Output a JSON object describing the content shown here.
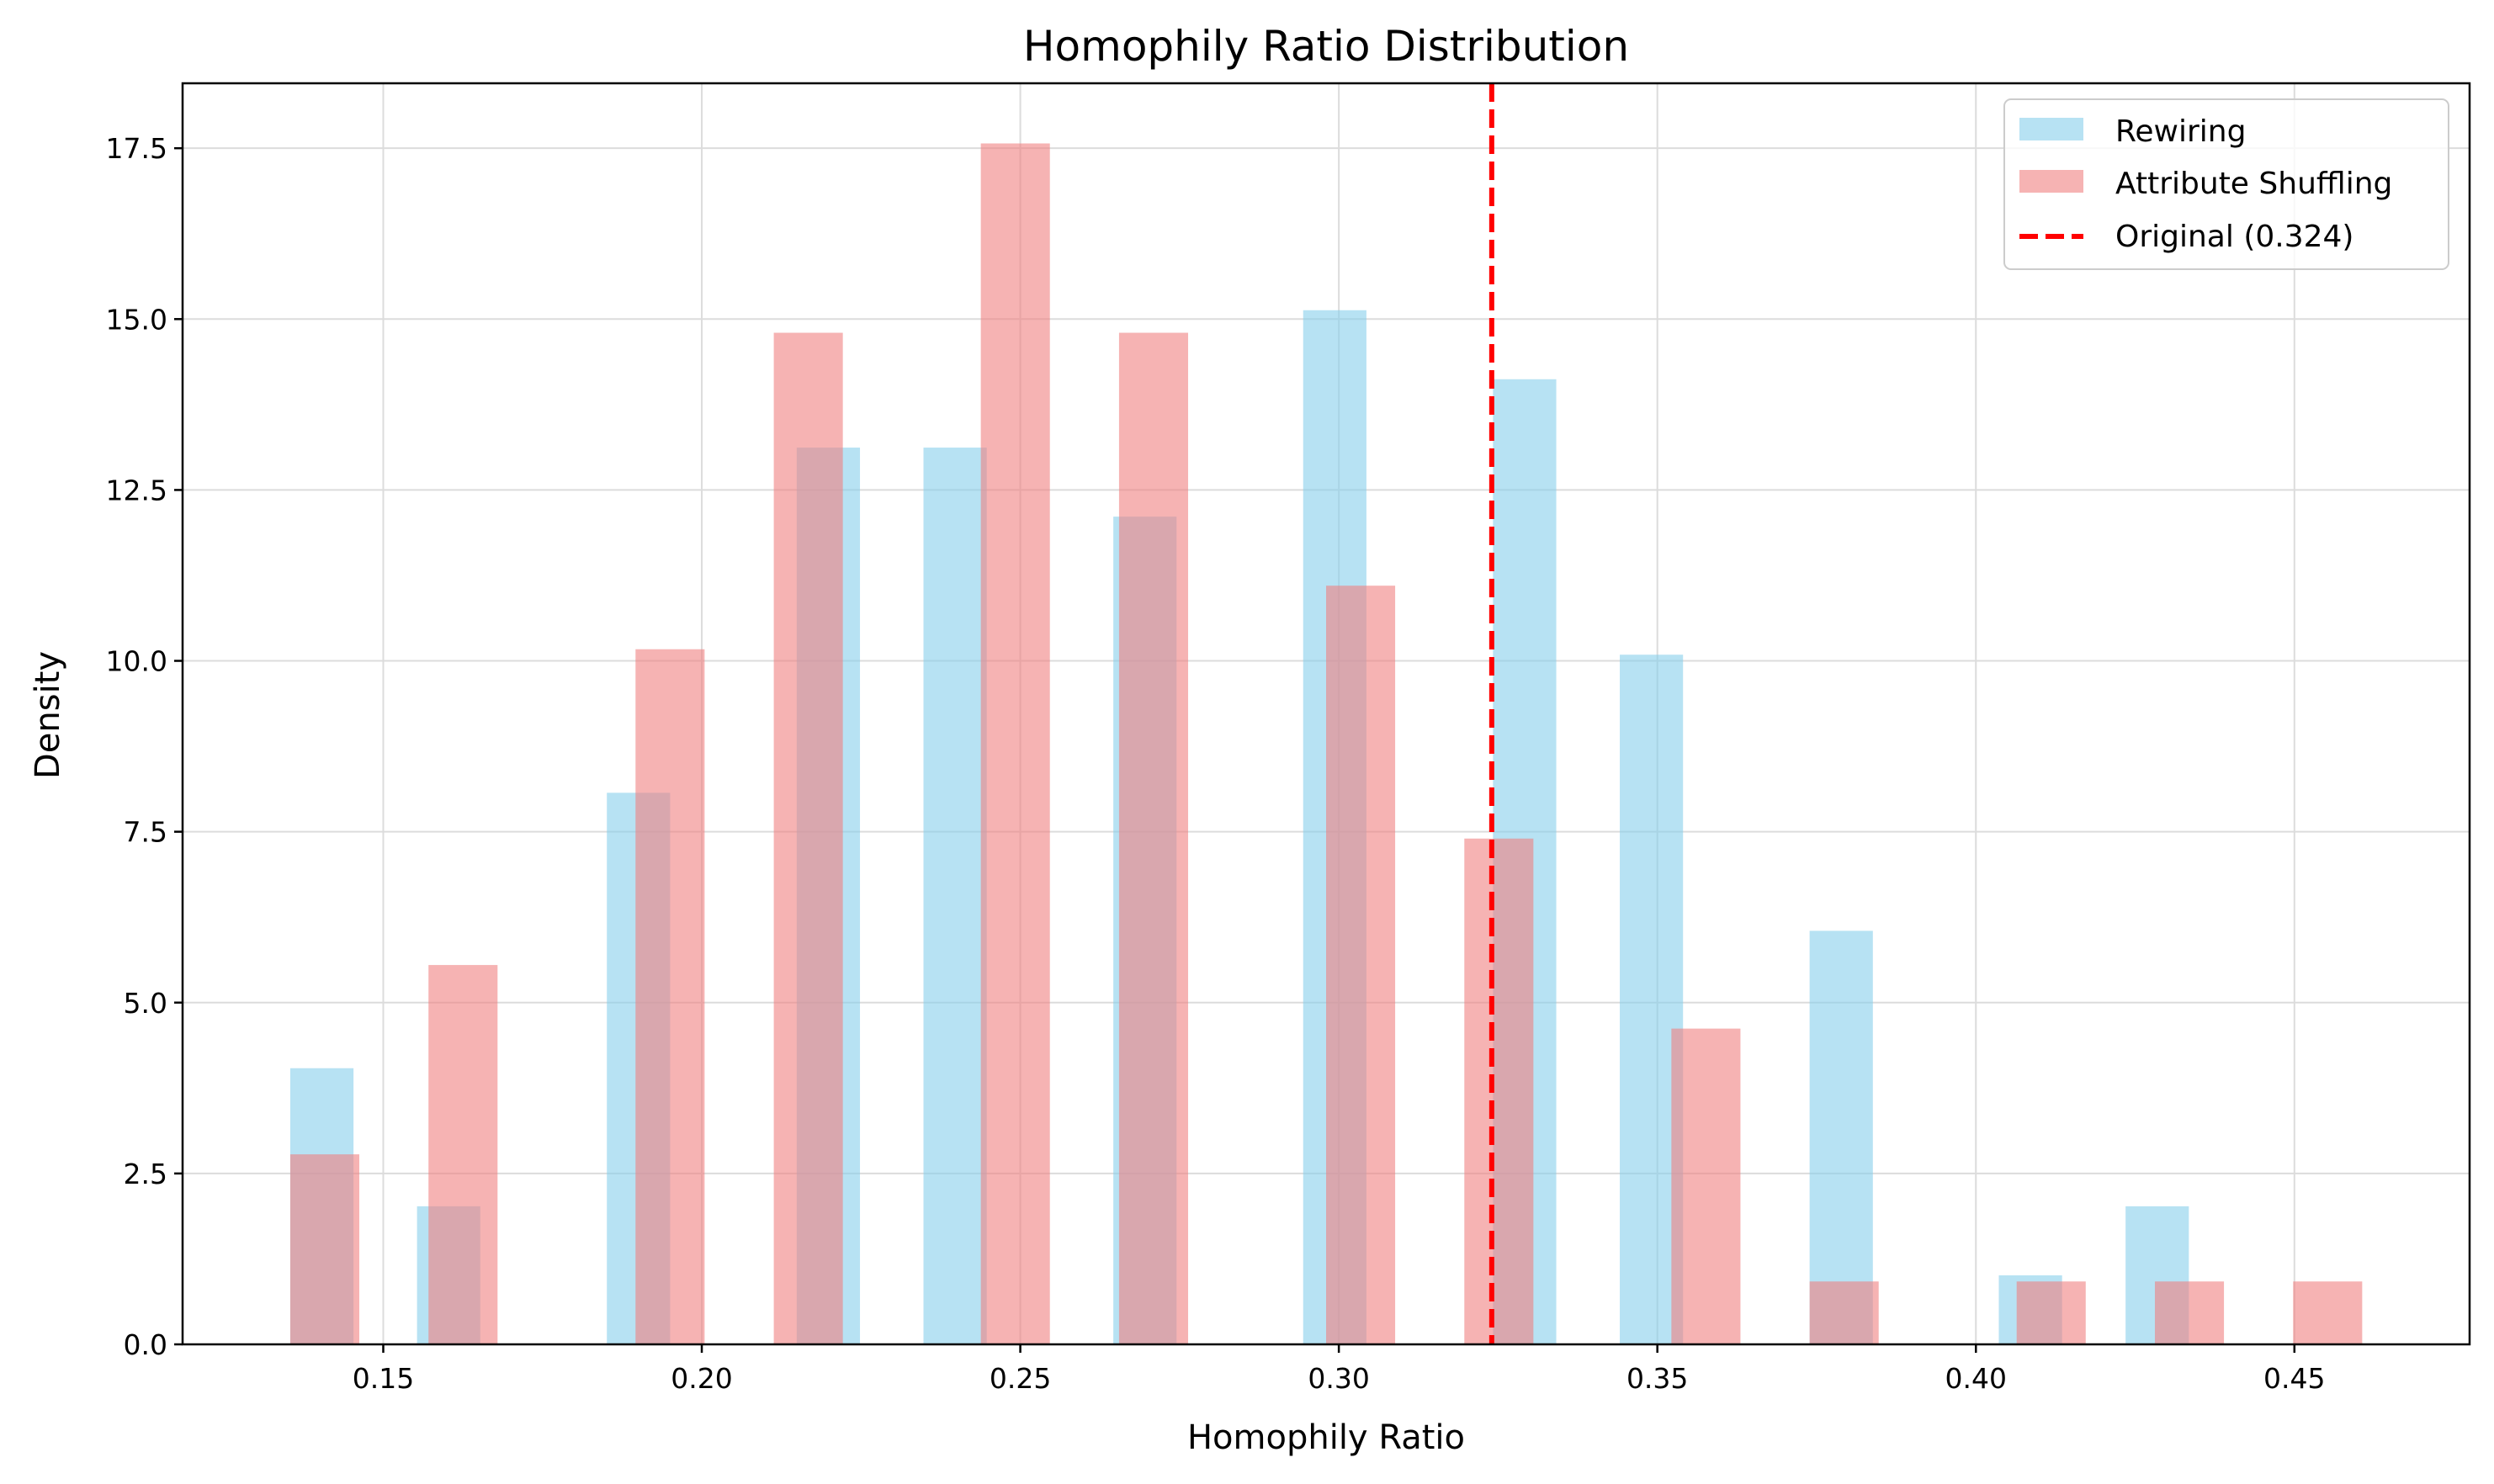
{
  "chart_data": {
    "type": "bar",
    "title": "Homophily Ratio Distribution",
    "xlabel": "Homophily Ratio",
    "ylabel": "Density",
    "xlim": [
      0.1185,
      0.4775
    ],
    "ylim": [
      0,
      18.45
    ],
    "xticks": [
      0.15,
      0.2,
      0.25,
      0.3,
      0.35,
      0.4,
      0.45
    ],
    "xtick_labels": [
      "0.15",
      "0.20",
      "0.25",
      "0.30",
      "0.35",
      "0.40",
      "0.45"
    ],
    "yticks": [
      0.0,
      2.5,
      5.0,
      7.5,
      10.0,
      12.5,
      15.0,
      17.5
    ],
    "ytick_labels": [
      "0.0",
      "2.5",
      "5.0",
      "7.5",
      "10.0",
      "12.5",
      "15.0",
      "17.5"
    ],
    "grid": true,
    "legend_position": "top-right",
    "series": [
      {
        "name": "Rewiring",
        "color": "#87CEEB",
        "opacity": 0.6,
        "bin_width": 0.00993,
        "bins": [
          {
            "x0": 0.1354,
            "value": 4.04
          },
          {
            "x0": 0.1553,
            "value": 2.02
          },
          {
            "x0": 0.1851,
            "value": 8.07
          },
          {
            "x0": 0.2149,
            "value": 13.12
          },
          {
            "x0": 0.2348,
            "value": 13.12
          },
          {
            "x0": 0.2646,
            "value": 12.11
          },
          {
            "x0": 0.2944,
            "value": 15.13
          },
          {
            "x0": 0.3242,
            "value": 14.12
          },
          {
            "x0": 0.3441,
            "value": 10.09
          },
          {
            "x0": 0.3739,
            "value": 6.05
          },
          {
            "x0": 0.4036,
            "value": 1.01
          },
          {
            "x0": 0.4235,
            "value": 2.02
          }
        ]
      },
      {
        "name": "Attribute Shuffling",
        "color": "#F08080",
        "opacity": 0.6,
        "bin_width": 0.01084,
        "bins": [
          {
            "x0": 0.1354,
            "value": 2.78
          },
          {
            "x0": 0.1571,
            "value": 5.55
          },
          {
            "x0": 0.1896,
            "value": 10.17
          },
          {
            "x0": 0.2113,
            "value": 14.8
          },
          {
            "x0": 0.2438,
            "value": 17.57
          },
          {
            "x0": 0.2655,
            "value": 14.8
          },
          {
            "x0": 0.298,
            "value": 11.1
          },
          {
            "x0": 0.3197,
            "value": 7.4
          },
          {
            "x0": 0.3522,
            "value": 4.62
          },
          {
            "x0": 0.3739,
            "value": 0.92
          },
          {
            "x0": 0.4064,
            "value": 0.92
          },
          {
            "x0": 0.4281,
            "value": 0.92
          },
          {
            "x0": 0.4498,
            "value": 0.92
          }
        ]
      }
    ],
    "reference_line": {
      "name": "Original (0.324)",
      "x": 0.324,
      "color": "#FF0000",
      "style": "dashed"
    }
  }
}
